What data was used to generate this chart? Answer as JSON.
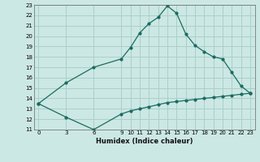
{
  "xlabel": "Humidex (Indice chaleur)",
  "bg_color": "#cce8e4",
  "grid_color": "#aacfca",
  "line_color": "#1a6b60",
  "line1_x": [
    0,
    3,
    6,
    9,
    10,
    11,
    12,
    13,
    14,
    15,
    16,
    17,
    18,
    19,
    20,
    21,
    22,
    23
  ],
  "line1_y": [
    13.5,
    15.5,
    17.0,
    17.8,
    18.9,
    20.3,
    21.2,
    21.8,
    22.9,
    22.2,
    20.2,
    19.1,
    18.5,
    18.0,
    17.8,
    16.5,
    15.2,
    14.5
  ],
  "line2_x": [
    0,
    3,
    6,
    9,
    10,
    11,
    12,
    13,
    14,
    15,
    16,
    17,
    18,
    19,
    20,
    21,
    22,
    23
  ],
  "line2_y": [
    13.5,
    12.2,
    11.0,
    12.5,
    12.8,
    13.0,
    13.2,
    13.4,
    13.6,
    13.7,
    13.8,
    13.9,
    14.0,
    14.1,
    14.2,
    14.3,
    14.4,
    14.5
  ],
  "xlim": [
    -0.5,
    23.5
  ],
  "ylim": [
    11,
    23
  ],
  "yticks": [
    11,
    12,
    13,
    14,
    15,
    16,
    17,
    18,
    19,
    20,
    21,
    22,
    23
  ],
  "xticks": [
    0,
    3,
    6,
    9,
    10,
    11,
    12,
    13,
    14,
    15,
    16,
    17,
    18,
    19,
    20,
    21,
    22,
    23
  ]
}
